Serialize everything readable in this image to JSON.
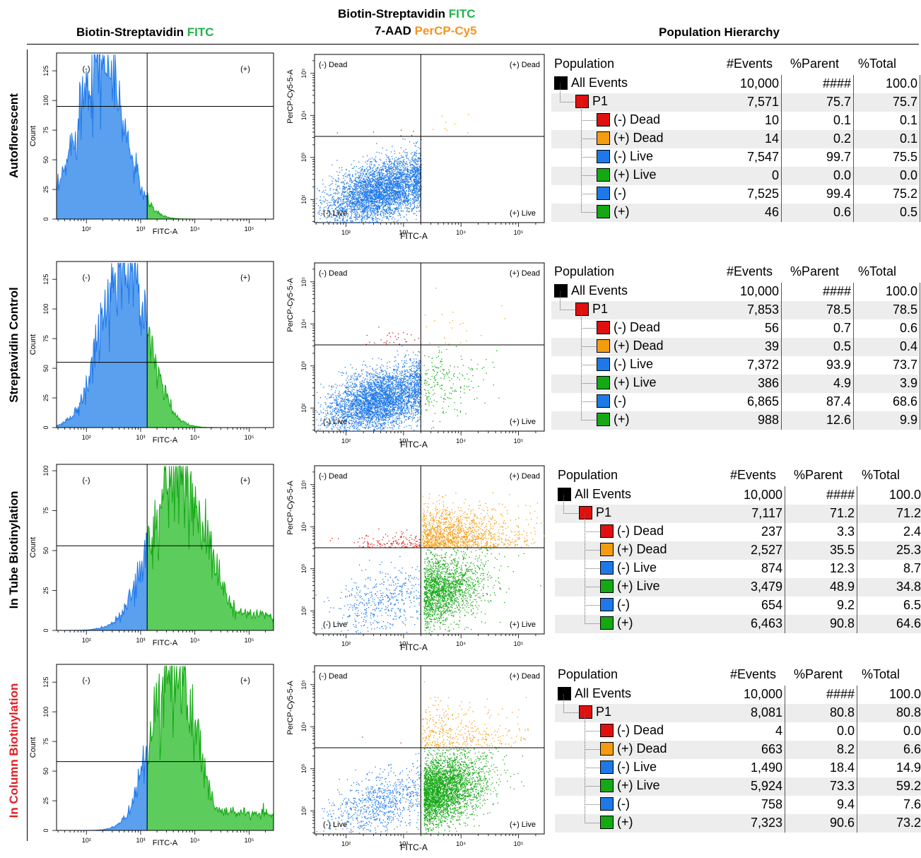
{
  "headers": {
    "col1": [
      {
        "t": "Biotin-Streptavidin ",
        "c": "#000000"
      },
      {
        "t": "FITC",
        "c": "#21b14b"
      }
    ],
    "col2_line1": [
      {
        "t": "Biotin-Streptavidin ",
        "c": "#000000"
      },
      {
        "t": "FITC",
        "c": "#21b14b"
      }
    ],
    "col2_line2": [
      {
        "t": "7-AAD ",
        "c": "#000000"
      },
      {
        "t": "PerCP-Cy5",
        "c": "#f7941d"
      }
    ],
    "col3": [
      {
        "t": "Population Hierarchy",
        "c": "#000000"
      }
    ]
  },
  "row_labels": [
    [
      {
        "t": "Autoflorescent",
        "c": "#000000"
      }
    ],
    [
      {
        "t": "Streptavidin Control",
        "c": "#000000"
      }
    ],
    [
      {
        "t": "In Tube Biotinylation",
        "c": "#000000"
      }
    ],
    [
      {
        "t": "In Column ",
        "c": "#e31e24"
      },
      {
        "t": "Biotinylation",
        "c": "#e31e24"
      }
    ]
  ],
  "colors": {
    "blue": "#1f78e8",
    "green": "#14a814",
    "red": "#e01010",
    "orange": "#f39c12",
    "black": "#000000",
    "histBlue": "#5aa0ef",
    "histGreen": "#5ccc5c"
  },
  "table_columns": [
    "Population",
    "#Events",
    "%Parent",
    "%Total"
  ],
  "chart_data": [
    {
      "type": "histogram",
      "name": "autofluor-hist",
      "xlabel": "FITC-A",
      "ylabel": "Count",
      "x_log_ticks": [
        "10²",
        "10³",
        "10⁴",
        "10⁵"
      ],
      "yticks": [
        "0",
        "25",
        "50",
        "75",
        "100",
        "125"
      ],
      "ymax": 140,
      "gate_labels": [
        "(-)",
        "(+)"
      ],
      "gate_log10": 3.12,
      "hline_count": 95,
      "peak_log10": 2.25,
      "peak_count": 138,
      "width": 0.42,
      "pos_tail": "none"
    },
    {
      "type": "scatter",
      "name": "autofluor-scatter",
      "xlabel": "FITC-A",
      "ylabel": "PerCP-Cy5-5-A",
      "x_log_ticks": [
        "10²",
        "10³",
        "10⁴",
        "10⁵"
      ],
      "y_log_ticks": [
        "10²",
        "10³",
        "10⁴",
        "10⁵"
      ],
      "quadrants": [
        "(-) Dead",
        "(+) Dead",
        "(-) Live",
        "(+) Live"
      ],
      "gate_x_log10": 3.3,
      "gate_y_log10": 3.5,
      "counts": {
        "neg_live": 7547,
        "pos_live": 0,
        "neg_dead": 10,
        "pos_dead": 14
      }
    },
    {
      "type": "histogram",
      "name": "strep-hist",
      "xlabel": "FITC-A",
      "ylabel": "Count",
      "x_log_ticks": [
        "10²",
        "10³",
        "10⁴",
        "10⁵"
      ],
      "yticks": [
        "0",
        "25",
        "50",
        "75",
        "100",
        "125"
      ],
      "ymax": 140,
      "gate_labels": [
        "(-)",
        "(+)"
      ],
      "gate_log10": 3.12,
      "hline_count": 55,
      "peak_log10": 2.7,
      "peak_count": 138,
      "width": 0.42,
      "pos_tail": "small"
    },
    {
      "type": "scatter",
      "name": "strep-scatter",
      "xlabel": "FITC-A",
      "ylabel": "PerCP-Cy5-5-A",
      "x_log_ticks": [
        "10²",
        "10³",
        "10⁴",
        "10⁵"
      ],
      "y_log_ticks": [
        "10²",
        "10³",
        "10⁴",
        "10⁵"
      ],
      "quadrants": [
        "(-) Dead",
        "(+) Dead",
        "(-) Live",
        "(+) Live"
      ],
      "gate_x_log10": 3.3,
      "gate_y_log10": 3.5,
      "counts": {
        "neg_live": 7372,
        "pos_live": 386,
        "neg_dead": 56,
        "pos_dead": 39
      }
    },
    {
      "type": "histogram",
      "name": "intube-hist",
      "xlabel": "FITC-A",
      "ylabel": "Count",
      "x_log_ticks": [
        "10²",
        "10³",
        "10⁴",
        "10⁵"
      ],
      "yticks": [
        "0",
        "25",
        "50",
        "75",
        "100"
      ],
      "ymax": 104,
      "gate_labels": [
        "(-)",
        "(+)"
      ],
      "gate_log10": 3.12,
      "hline_count": 53,
      "peak_log10": 3.7,
      "peak_count": 100,
      "width": 0.5,
      "pos_tail": "large"
    },
    {
      "type": "scatter",
      "name": "intube-scatter",
      "xlabel": "FITC-A",
      "ylabel": "PerCP-Cy5-5-A",
      "x_log_ticks": [
        "10²",
        "10³",
        "10⁴",
        "10⁵"
      ],
      "y_log_ticks": [
        "10²",
        "10³",
        "10⁴",
        "10⁵"
      ],
      "quadrants": [
        "(-) Dead",
        "(+) Dead",
        "(-) Live",
        "(+) Live"
      ],
      "gate_x_log10": 3.3,
      "gate_y_log10": 3.5,
      "counts": {
        "neg_live": 874,
        "pos_live": 3479,
        "neg_dead": 237,
        "pos_dead": 2527
      }
    },
    {
      "type": "histogram",
      "name": "incolumn-hist",
      "xlabel": "FITC-A",
      "ylabel": "Count",
      "x_log_ticks": [
        "10²",
        "10³",
        "10⁴",
        "10⁵"
      ],
      "yticks": [
        "0",
        "25",
        "50",
        "75",
        "100",
        "125"
      ],
      "ymax": 140,
      "gate_labels": [
        "(-)",
        "(+)"
      ],
      "gate_log10": 3.12,
      "hline_count": 58,
      "peak_log10": 3.6,
      "peak_count": 135,
      "width": 0.4,
      "pos_tail": "large"
    },
    {
      "type": "scatter",
      "name": "incolumn-scatter",
      "xlabel": "FITC-A",
      "ylabel": "PerCP-Cy5-5-A",
      "x_log_ticks": [
        "10²",
        "10³",
        "10⁴",
        "10⁵"
      ],
      "y_log_ticks": [
        "10²",
        "10³",
        "10⁴",
        "10⁵"
      ],
      "quadrants": [
        "(-) Dead",
        "(+) Dead",
        "(-) Live",
        "(+) Live"
      ],
      "gate_x_log10": 3.3,
      "gate_y_log10": 3.5,
      "counts": {
        "neg_live": 1490,
        "pos_live": 5924,
        "neg_dead": 4,
        "pos_dead": 663
      }
    },
    {
      "type": "table",
      "name": "autofluor-table",
      "rows": [
        {
          "name": "All Events",
          "color": "#000000",
          "level": 0,
          "events": "10,000",
          "parent": "####",
          "total": "100.0"
        },
        {
          "name": "P1",
          "color": "#e01010",
          "level": 1,
          "events": "7,571",
          "parent": "75.7",
          "total": "75.7"
        },
        {
          "name": "(-) Dead",
          "color": "#e01010",
          "level": 2,
          "events": "10",
          "parent": "0.1",
          "total": "0.1"
        },
        {
          "name": "(+) Dead",
          "color": "#f39c12",
          "level": 2,
          "events": "14",
          "parent": "0.2",
          "total": "0.1"
        },
        {
          "name": "(-) Live",
          "color": "#1f78e8",
          "level": 2,
          "events": "7,547",
          "parent": "99.7",
          "total": "75.5"
        },
        {
          "name": "(+) Live",
          "color": "#14a814",
          "level": 2,
          "events": "0",
          "parent": "0.0",
          "total": "0.0"
        },
        {
          "name": "(-)",
          "color": "#1f78e8",
          "level": 2,
          "events": "7,525",
          "parent": "99.4",
          "total": "75.2"
        },
        {
          "name": "(+)",
          "color": "#14a814",
          "level": 2,
          "events": "46",
          "parent": "0.6",
          "total": "0.5"
        }
      ]
    },
    {
      "type": "table",
      "name": "strep-table",
      "rows": [
        {
          "name": "All Events",
          "color": "#000000",
          "level": 0,
          "events": "10,000",
          "parent": "####",
          "total": "100.0"
        },
        {
          "name": "P1",
          "color": "#e01010",
          "level": 1,
          "events": "7,853",
          "parent": "78.5",
          "total": "78.5"
        },
        {
          "name": "(-) Dead",
          "color": "#e01010",
          "level": 2,
          "events": "56",
          "parent": "0.7",
          "total": "0.6"
        },
        {
          "name": "(+) Dead",
          "color": "#f39c12",
          "level": 2,
          "events": "39",
          "parent": "0.5",
          "total": "0.4"
        },
        {
          "name": "(-) Live",
          "color": "#1f78e8",
          "level": 2,
          "events": "7,372",
          "parent": "93.9",
          "total": "73.7"
        },
        {
          "name": "(+) Live",
          "color": "#14a814",
          "level": 2,
          "events": "386",
          "parent": "4.9",
          "total": "3.9"
        },
        {
          "name": "(-)",
          "color": "#1f78e8",
          "level": 2,
          "events": "6,865",
          "parent": "87.4",
          "total": "68.6"
        },
        {
          "name": "(+)",
          "color": "#14a814",
          "level": 2,
          "events": "988",
          "parent": "12.6",
          "total": "9.9"
        }
      ]
    },
    {
      "type": "table",
      "name": "intube-table",
      "rows": [
        {
          "name": "All Events",
          "color": "#000000",
          "level": 0,
          "events": "10,000",
          "parent": "####",
          "total": "100.0"
        },
        {
          "name": "P1",
          "color": "#e01010",
          "level": 1,
          "events": "7,117",
          "parent": "71.2",
          "total": "71.2"
        },
        {
          "name": "(-) Dead",
          "color": "#e01010",
          "level": 2,
          "events": "237",
          "parent": "3.3",
          "total": "2.4"
        },
        {
          "name": "(+) Dead",
          "color": "#f39c12",
          "level": 2,
          "events": "2,527",
          "parent": "35.5",
          "total": "25.3"
        },
        {
          "name": "(-) Live",
          "color": "#1f78e8",
          "level": 2,
          "events": "874",
          "parent": "12.3",
          "total": "8.7"
        },
        {
          "name": "(+) Live",
          "color": "#14a814",
          "level": 2,
          "events": "3,479",
          "parent": "48.9",
          "total": "34.8"
        },
        {
          "name": "(-)",
          "color": "#1f78e8",
          "level": 2,
          "events": "654",
          "parent": "9.2",
          "total": "6.5"
        },
        {
          "name": "(+)",
          "color": "#14a814",
          "level": 2,
          "events": "6,463",
          "parent": "90.8",
          "total": "64.6"
        }
      ]
    },
    {
      "type": "table",
      "name": "incolumn-table",
      "rows": [
        {
          "name": "All Events",
          "color": "#000000",
          "level": 0,
          "events": "10,000",
          "parent": "####",
          "total": "100.0"
        },
        {
          "name": "P1",
          "color": "#e01010",
          "level": 1,
          "events": "8,081",
          "parent": "80.8",
          "total": "80.8"
        },
        {
          "name": "(-) Dead",
          "color": "#e01010",
          "level": 2,
          "events": "4",
          "parent": "0.0",
          "total": "0.0"
        },
        {
          "name": "(+) Dead",
          "color": "#f39c12",
          "level": 2,
          "events": "663",
          "parent": "8.2",
          "total": "6.6"
        },
        {
          "name": "(-) Live",
          "color": "#1f78e8",
          "level": 2,
          "events": "1,490",
          "parent": "18.4",
          "total": "14.9"
        },
        {
          "name": "(+) Live",
          "color": "#14a814",
          "level": 2,
          "events": "5,924",
          "parent": "73.3",
          "total": "59.2"
        },
        {
          "name": "(-)",
          "color": "#1f78e8",
          "level": 2,
          "events": "758",
          "parent": "9.4",
          "total": "7.6"
        },
        {
          "name": "(+)",
          "color": "#14a814",
          "level": 2,
          "events": "7,323",
          "parent": "90.6",
          "total": "73.2"
        }
      ]
    }
  ]
}
